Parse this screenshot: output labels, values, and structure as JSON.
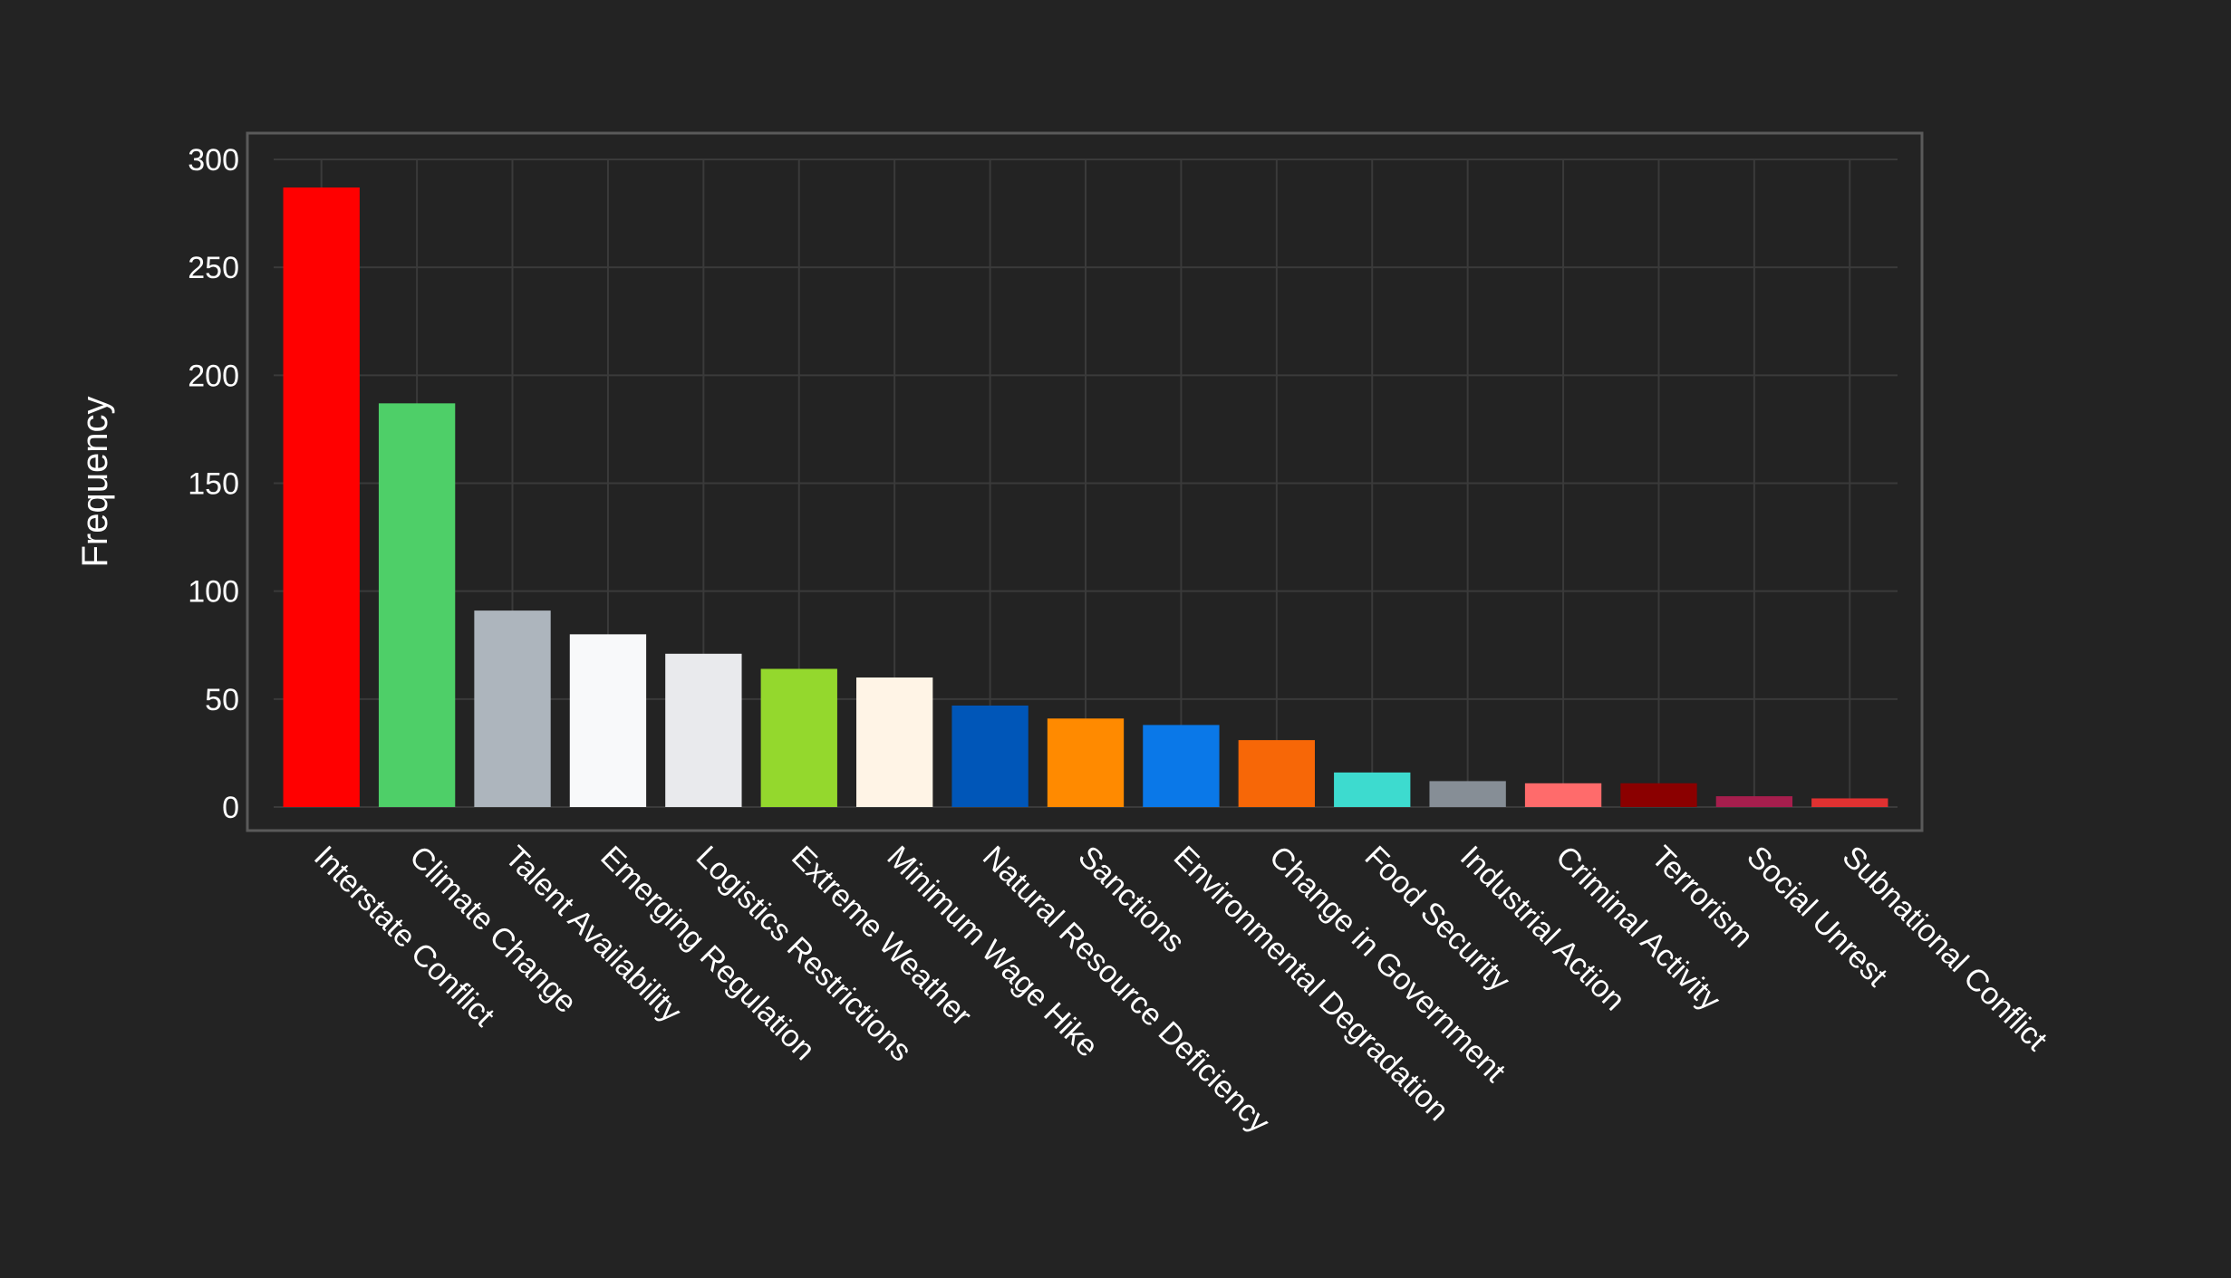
{
  "chart_data": {
    "type": "bar",
    "ylabel": "Frequency",
    "xlabel": "",
    "ylim": [
      0,
      300
    ],
    "yticks": [
      0,
      50,
      100,
      150,
      200,
      250,
      300
    ],
    "grid": true,
    "categories": [
      "Interstate Conflict",
      "Climate Change",
      "Talent Availability",
      "Emerging Regulation",
      "Logistics Restrictions",
      "Extreme Weather",
      "Minimum Wage Hike",
      "Natural Resource Deficiency",
      "Sanctions",
      "Environmental Degradation",
      "Change in Government",
      "Food Security",
      "Industrial Action",
      "Criminal Activity",
      "Terrorism",
      "Social Unrest",
      "Subnational Conflict"
    ],
    "values": [
      287,
      187,
      91,
      80,
      71,
      64,
      60,
      47,
      41,
      38,
      31,
      16,
      12,
      11,
      11,
      5,
      4
    ],
    "colors": [
      "#ff0000",
      "#4ecf68",
      "#adb5bd",
      "#f8f9fa",
      "#e9eaed",
      "#94d82d",
      "#fff4e6",
      "#0056b8",
      "#ff8a00",
      "#0a78e8",
      "#f76707",
      "#3ddbcf",
      "#868e96",
      "#ff6b6b",
      "#8b0000",
      "#a61e4d",
      "#e03131"
    ]
  }
}
